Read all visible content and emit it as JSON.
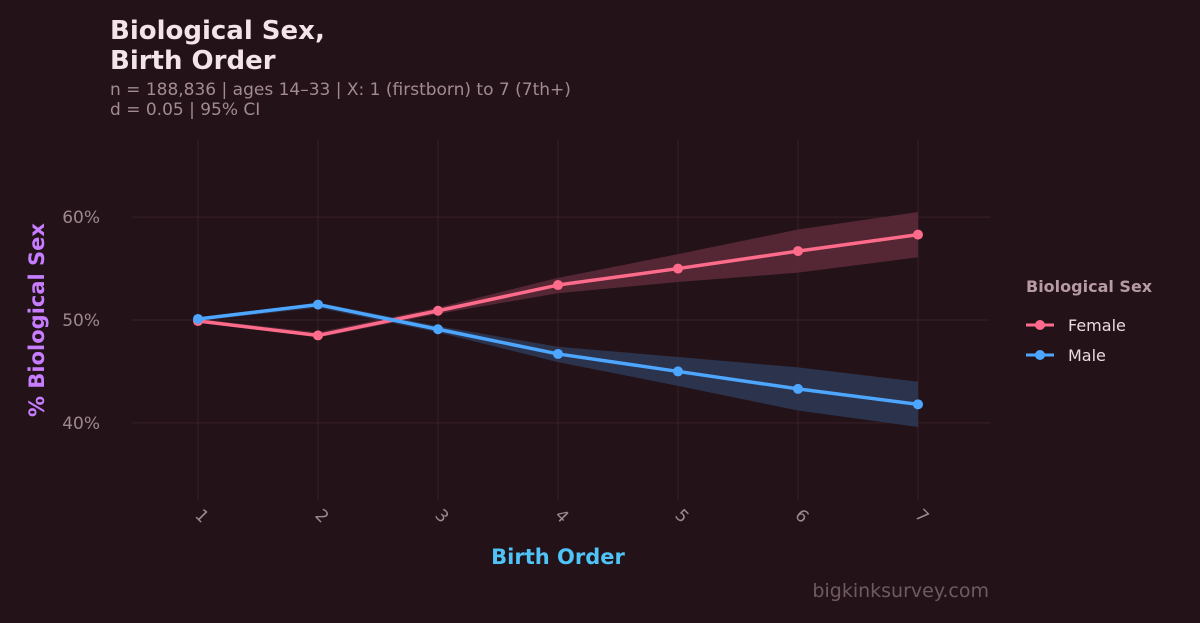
{
  "header": {
    "title_line1": "Biological Sex,",
    "title_line2": "Birth Order",
    "subtitle_line1": "n = 188,836  |  ages 14–33  |  X: 1 (firstborn) to 7 (7th+)",
    "subtitle_line2": "d = 0.05  |  95% CI"
  },
  "legend": {
    "title": "Biological Sex",
    "items": [
      {
        "label": "Female",
        "color": "#ff6b8b"
      },
      {
        "label": "Male",
        "color": "#4da6ff"
      }
    ]
  },
  "watermark": "bigkinksurvey.com",
  "chart_data": {
    "type": "line",
    "xlabel": "Birth Order",
    "ylabel": "%  Biological Sex",
    "x": [
      1,
      2,
      3,
      4,
      5,
      6,
      7
    ],
    "x_tick_labels": [
      "1",
      "2",
      "3",
      "4",
      "5",
      "6",
      "7"
    ],
    "y_ticks": [
      40,
      50,
      60
    ],
    "y_tick_labels": [
      "40%",
      "50%",
      "60%"
    ],
    "ylim": [
      32.5,
      67.5
    ],
    "xlim": [
      0.45,
      7.6
    ],
    "grid": true,
    "legend_position": "right",
    "confidence_interval": "95%",
    "series": [
      {
        "name": "Female",
        "color": "#ff6b8b",
        "band_color": "#5e2a3a",
        "values": [
          49.9,
          48.5,
          50.9,
          53.4,
          55.0,
          56.7,
          58.3
        ],
        "ci_low": [
          49.8,
          48.3,
          50.6,
          52.6,
          53.7,
          54.6,
          56.1
        ],
        "ci_high": [
          50.1,
          48.8,
          51.2,
          54.1,
          56.4,
          58.8,
          60.5
        ]
      },
      {
        "name": "Male",
        "color": "#4da6ff",
        "band_color": "#2e3a57",
        "values": [
          50.1,
          51.5,
          49.1,
          46.7,
          45.0,
          43.3,
          41.8
        ],
        "ci_low": [
          49.9,
          51.2,
          48.8,
          45.9,
          43.6,
          41.2,
          39.6
        ],
        "ci_high": [
          50.2,
          51.7,
          49.4,
          47.4,
          46.4,
          45.4,
          44.0
        ]
      }
    ]
  },
  "colors": {
    "background": "#231319",
    "grid": "#3a1f29",
    "tick_text": "#9d8790",
    "xlabel": "#4fc3f7",
    "ylabel": "#c77dff"
  }
}
